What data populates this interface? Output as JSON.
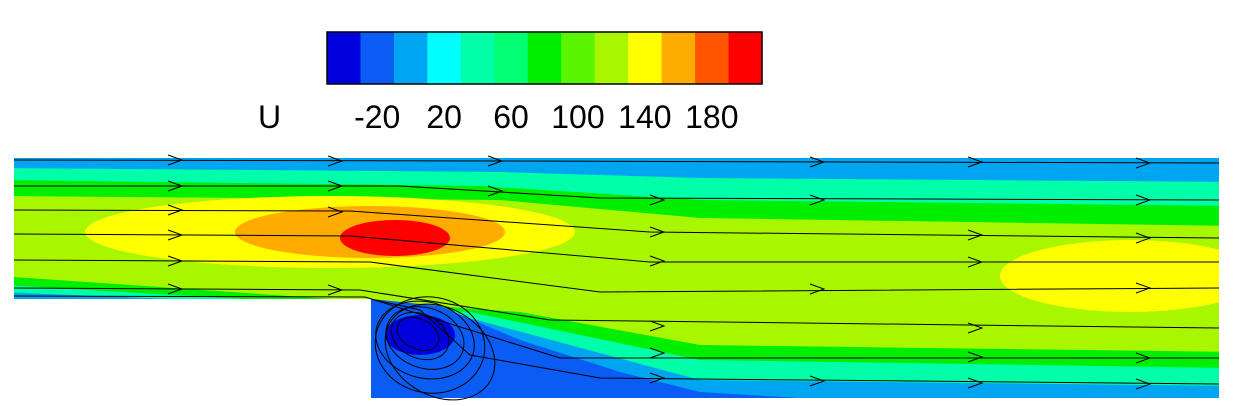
{
  "chart_data": {
    "type": "heatmap",
    "variable_label": "U",
    "legend": {
      "placement": "top",
      "orientation": "horizontal",
      "levels": [
        -40,
        -20,
        0,
        20,
        40,
        60,
        80,
        100,
        120,
        140,
        160,
        180,
        200
      ],
      "colors": [
        "#0000dd",
        "#0a5cf5",
        "#00a5f2",
        "#00ffff",
        "#00ffa8",
        "#00ff73",
        "#00ee00",
        "#5bf500",
        "#a8f700",
        "#ffff00",
        "#ffab00",
        "#ff5500",
        "#ff0000"
      ],
      "tick_labels": [
        "-20",
        "20",
        "60",
        "100",
        "140",
        "180"
      ],
      "tick_values": [
        -20,
        20,
        60,
        100,
        140,
        180
      ]
    },
    "domain": {
      "geometry": "backward-facing step channel",
      "inlet_channel": {
        "x": [
          0,
          1.0
        ],
        "y": [
          0,
          1.0
        ]
      },
      "expanded_channel": {
        "x": [
          1.0,
          2.25
        ],
        "y": [
          -0.8,
          1.0
        ]
      }
    },
    "peak_velocity_region": {
      "x": 0.98,
      "y": 0.57,
      "value": 200
    },
    "recirculation_zone": {
      "center": {
        "x": 1.12,
        "y": -0.35
      },
      "min_value": -40
    },
    "streamlines": true,
    "grid": false
  }
}
